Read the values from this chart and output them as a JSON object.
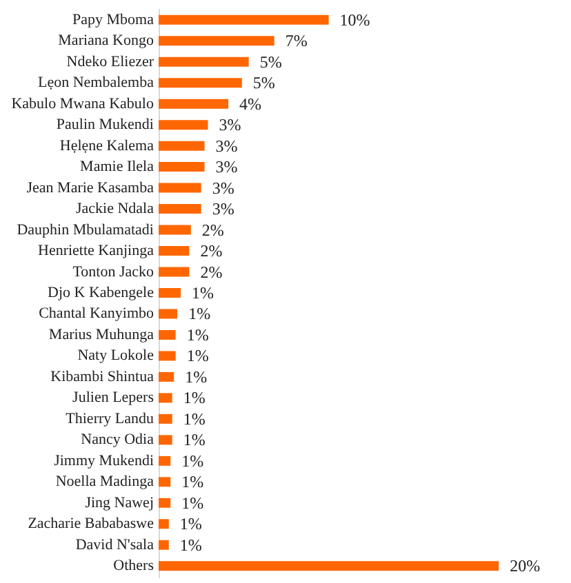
{
  "chart_data": {
    "type": "bar",
    "orientation": "horizontal",
    "color": "#ff6600",
    "categories": [
      "Papy Mboma",
      "Mariana Kongo",
      "Ndeko Eliezer ",
      "Lẹon Nembalemba",
      "Kabulo Mwana  Kabulo",
      "Paulin Mukendi",
      "Hẹlẹne Kalema",
      "Mamie Ilela",
      "Jean Marie Kasamba",
      "Jackie Ndala",
      "Dauphin Mbulamatadi",
      "Henriette Kanjinga",
      "Tonton Jacko",
      "Djo K Kabengele",
      "Chantal Kanyimbo",
      "Marius Muhunga",
      "Naty Lokole",
      "Kibambi Shintua",
      "Julien Lepers",
      "Thierry Landu",
      "Nancy Odia",
      "Jimmy Mukendi",
      "Noella Madinga",
      "Jing Nawej",
      "Zacharie Bababaswe",
      "David N'sala",
      "Others"
    ],
    "values": [
      10.0,
      6.8,
      5.3,
      4.9,
      4.1,
      2.9,
      2.7,
      2.7,
      2.5,
      2.5,
      1.9,
      1.8,
      1.8,
      1.3,
      1.1,
      1.0,
      1.0,
      0.9,
      0.8,
      0.8,
      0.8,
      0.7,
      0.7,
      0.7,
      0.6,
      0.6,
      20.0
    ],
    "value_labels": [
      "10%",
      "7%",
      "5%",
      "5%",
      "4%",
      "3%",
      "3%",
      "3%",
      "3%",
      "3%",
      "2%",
      "2%",
      "2%",
      "1%",
      "1%",
      "1%",
      "1%",
      "1%",
      "1%",
      "1%",
      "1%",
      "1%",
      "1%",
      "1%",
      "1%",
      "1%",
      "20%"
    ],
    "grid": false
  }
}
